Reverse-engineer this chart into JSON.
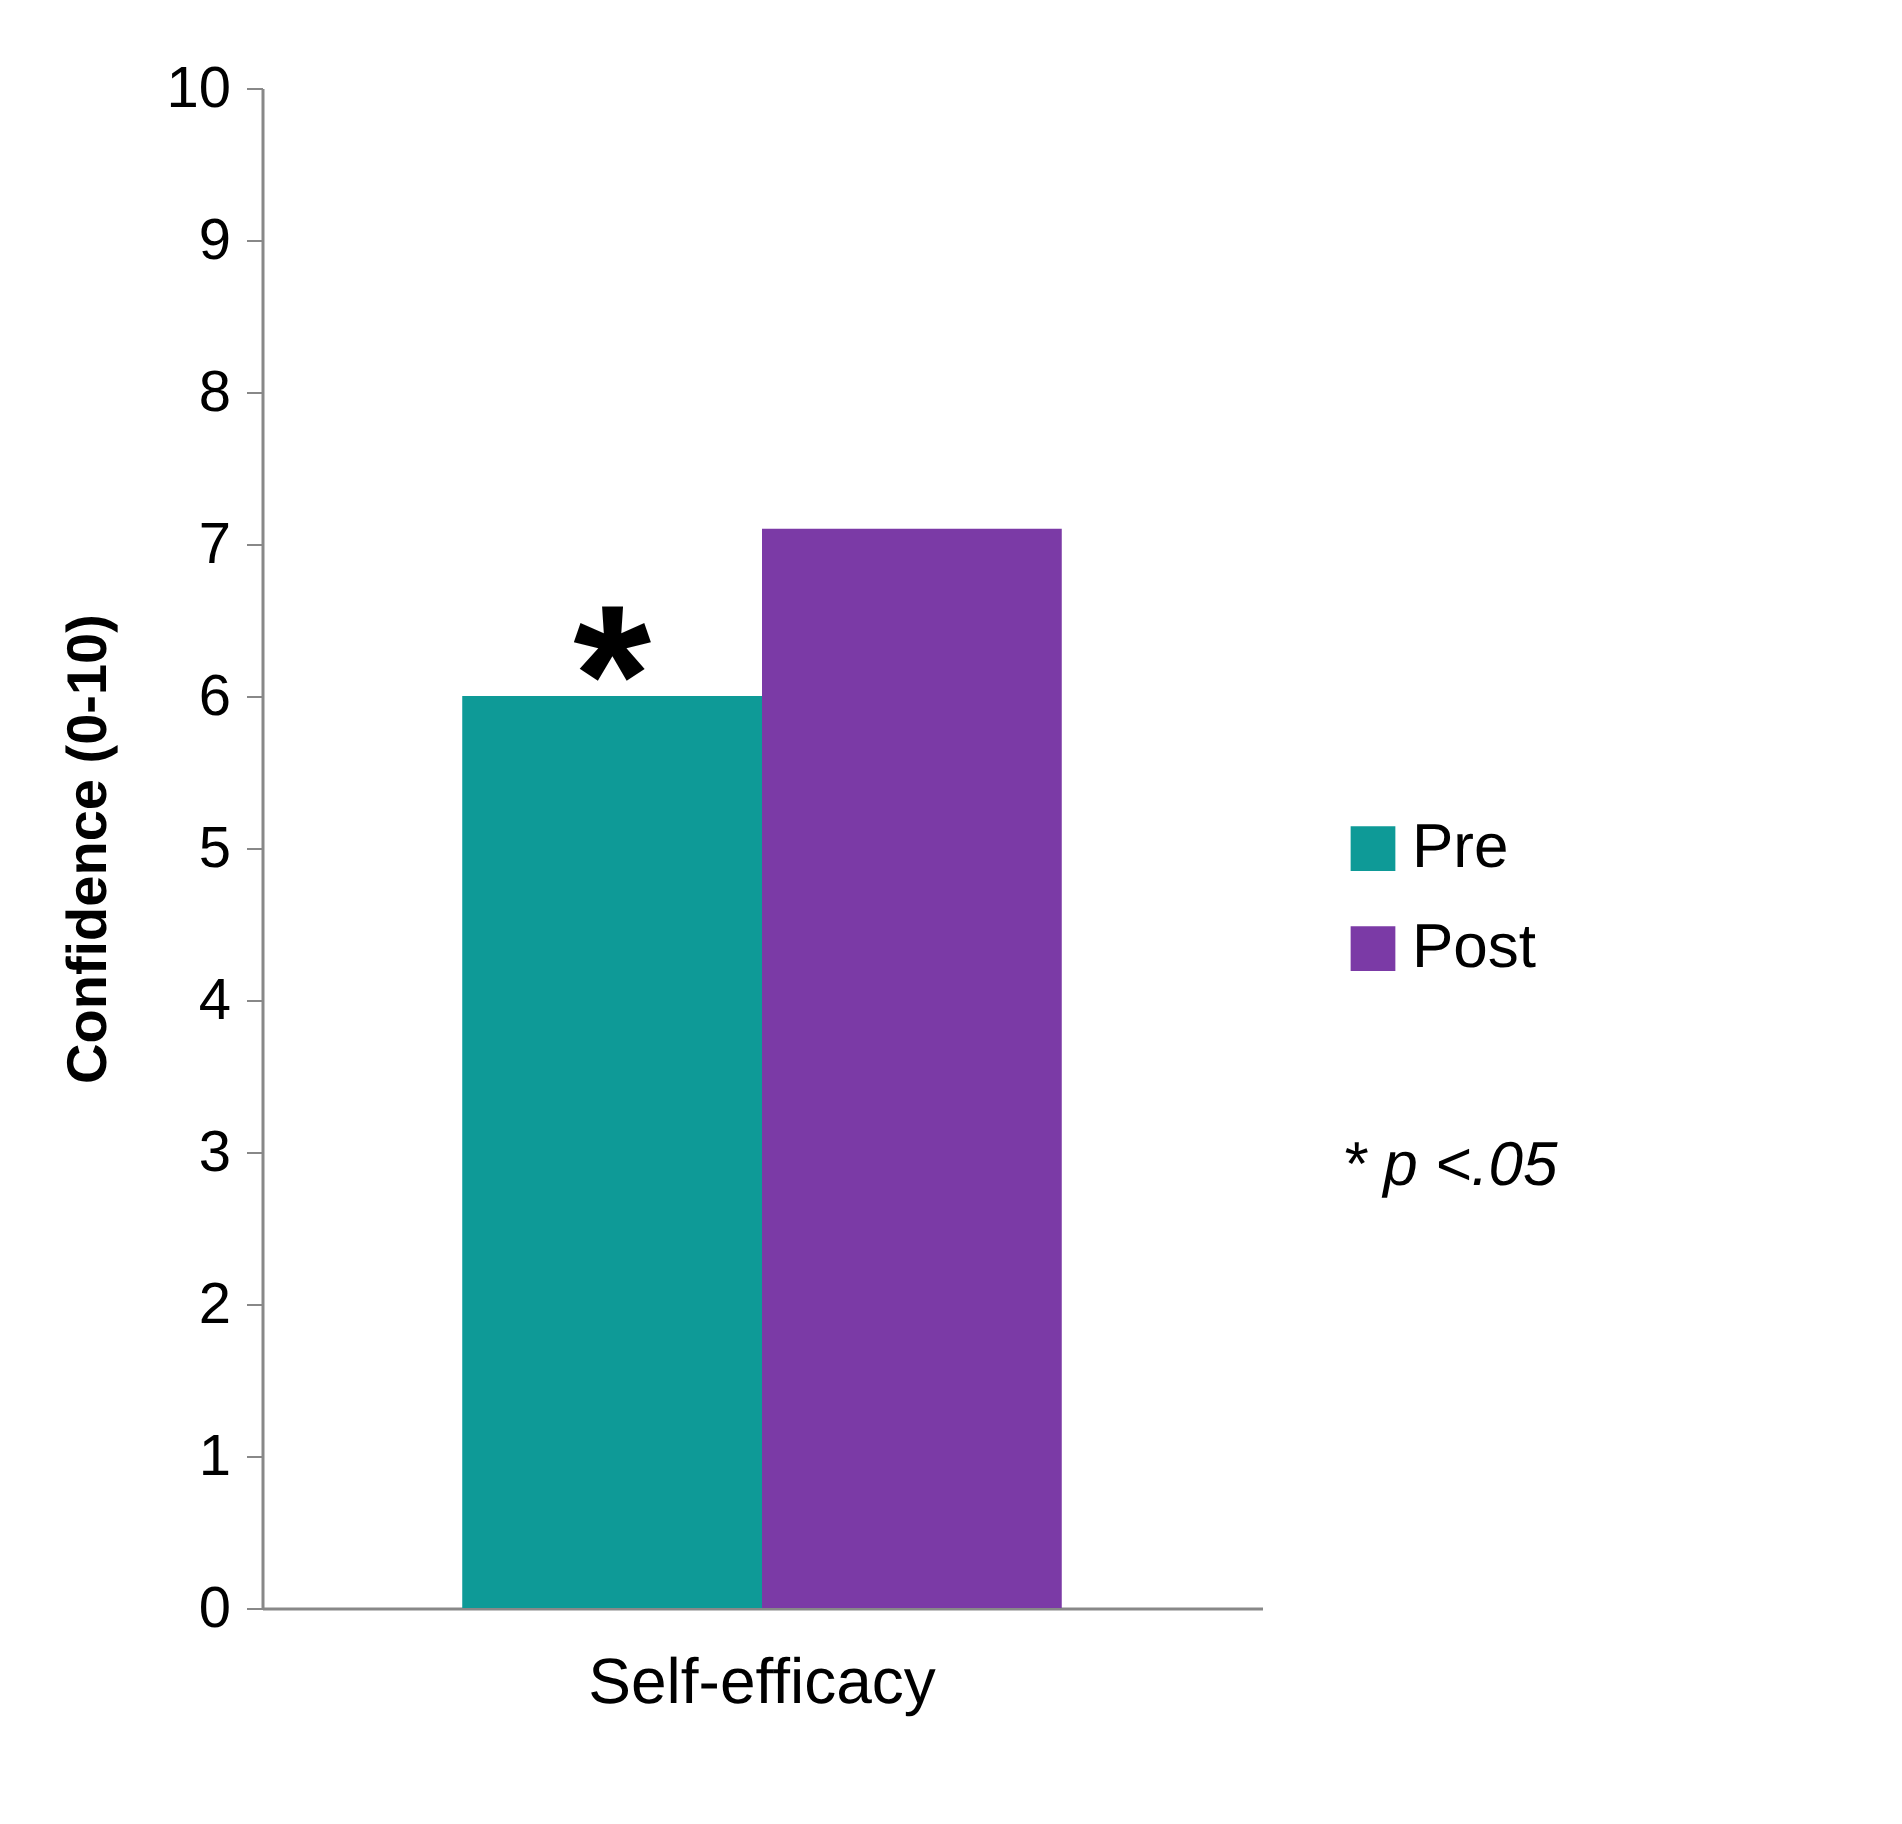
{
  "chart_data": {
    "type": "bar",
    "ylabel": "Confidence (0-10)",
    "categories": [
      "Self-efficacy"
    ],
    "series": [
      {
        "name": "Pre",
        "color": "#0e9a97",
        "values": [
          6.0
        ]
      },
      {
        "name": "Post",
        "color": "#7b3aa6",
        "values": [
          7.1
        ]
      }
    ],
    "ylim": [
      0,
      10
    ],
    "yticks": [
      0,
      1,
      2,
      3,
      4,
      5,
      6,
      7,
      8,
      9,
      10
    ],
    "grid": false,
    "legend": "right",
    "annotations": [
      "*",
      "* p <.05"
    ]
  }
}
